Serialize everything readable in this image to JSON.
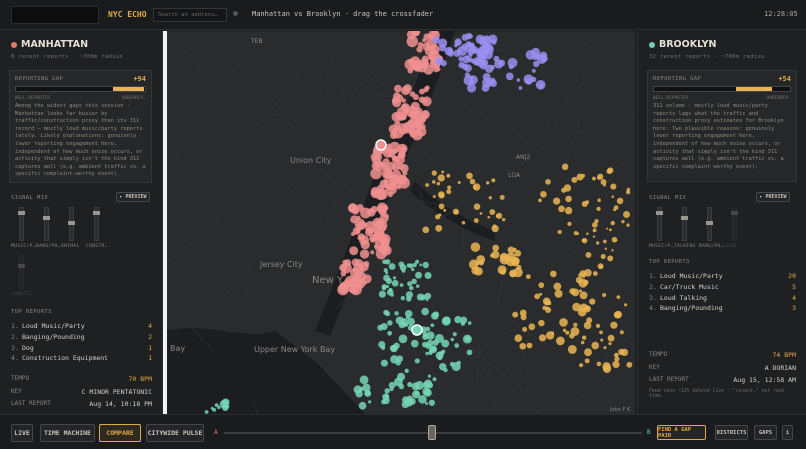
{
  "header": {
    "logo": "NYC ECHO",
    "search_placeholder": "Search an address…",
    "subtitle": "Manhattan vs Brooklyn · drag the crossfader",
    "clock": "12:28:05"
  },
  "left": {
    "name": "MANHATTAN",
    "meta": "8 recent reports · ~700m radius",
    "gap_title": "REPORTING GAP",
    "gap_value": "+94",
    "gap_low": "WELL-REPORTED",
    "gap_high": "UNDERREP.",
    "description": "Among the widest gaps this session · Manhattan looks far busier by traffic/construction proxy than its 311 record — mostly loud music/party reports lately. Likely explanations: genuinely lower reporting engagement here, independent of how much noise occurs, or activity that simply isn't the kind 311 captures well (e.g. ambient traffic vs. a specific complaint-worthy event).",
    "mix_title": "SIGNAL MIX",
    "preview": "▸ PREVIEW",
    "sliders": [
      "MUSIC/P…",
      "BANG/PO…",
      "ANIMAL",
      "CONSTR…",
      "LOUD/T…"
    ],
    "reports_title": "TOP REPORTS",
    "reports": [
      {
        "rank": "1.",
        "label": "Loud Music/Party",
        "count": "4"
      },
      {
        "rank": "2.",
        "label": "Banging/Pounding",
        "count": "2"
      },
      {
        "rank": "3.",
        "label": "Dog",
        "count": "1"
      },
      {
        "rank": "4.",
        "label": "Construction Equipment",
        "count": "1"
      }
    ],
    "stats": [
      {
        "label": "TEMPO",
        "value": "70 BPM"
      },
      {
        "label": "KEY",
        "value": "C MINOR PENTATONIC"
      },
      {
        "label": "LAST REPORT",
        "value": "Aug 14, 10:18 PM"
      }
    ]
  },
  "right": {
    "name": "BROOKLYN",
    "meta": "32 recent reports · ~700m radius",
    "gap_title": "REPORTING GAP",
    "gap_value": "+54",
    "gap_low": "WELL-REPORTED",
    "gap_high": "UNDERREP.",
    "description": "311 volume · mostly loud music/party reports lags what the traffic and construction proxy estimates for Brooklyn here. Two plausible reasons: genuinely lower reporting engagement here, independent of how much noise occurs, or activity that simply isn't the kind 311 captures well (e.g. ambient traffic vs. a specific complaint-worthy event).",
    "mix_title": "SIGNAL MIX",
    "preview": "▸ PREVIEW",
    "sliders": [
      "MUSIC/P…",
      "TALKING",
      "BANG/PO…",
      "LOUD…"
    ],
    "reports_title": "TOP REPORTS",
    "reports": [
      {
        "rank": "1.",
        "label": "Loud Music/Party",
        "count": "20"
      },
      {
        "rank": "2.",
        "label": "Car/Truck Music",
        "count": "5"
      },
      {
        "rank": "3.",
        "label": "Loud Talking",
        "count": "4"
      },
      {
        "rank": "4.",
        "label": "Banging/Pounding",
        "count": "3"
      }
    ],
    "stats": [
      {
        "label": "TEMPO",
        "value": "74 BPM"
      },
      {
        "label": "KEY",
        "value": "A DORIAN"
      },
      {
        "label": "LAST REPORT",
        "value": "Aug 15, 12:58 AM"
      }
    ],
    "note": "Feed runs ~12h behind live · \"recent,\" not real-time."
  },
  "map_labels": [
    "TEB",
    "Union City",
    "Jersey City",
    "New Y",
    "LGA",
    "ANJ2",
    "Upper New York Bay",
    "Bay",
    "John F K"
  ],
  "footer": {
    "modes": [
      "LIVE",
      "TIME MACHINE",
      "COMPARE",
      "CITYWIDE PULSE"
    ],
    "fader_a": "A",
    "fader_b": "B",
    "buttons": [
      "FIND A GAP PAIR",
      "DISTRICTS",
      "GAPS",
      "i"
    ]
  }
}
